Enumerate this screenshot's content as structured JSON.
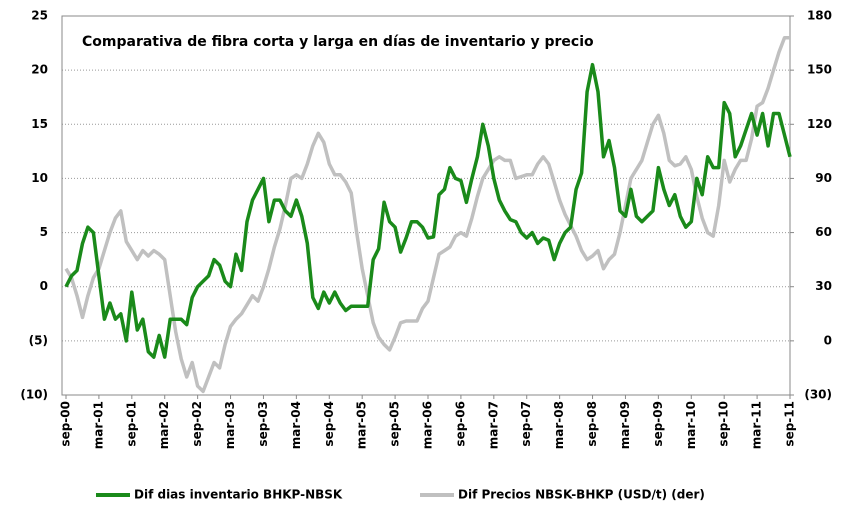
{
  "chart_data": {
    "type": "line",
    "title": "Comparativa de fibra corta y larga en días de inventario y precio",
    "categories": [
      "sep-00",
      null,
      null,
      null,
      null,
      null,
      "mar-01",
      null,
      null,
      null,
      null,
      null,
      "sep-01",
      null,
      null,
      null,
      null,
      null,
      "mar-02",
      null,
      null,
      null,
      null,
      null,
      "sep-02",
      null,
      null,
      null,
      null,
      null,
      "mar-03",
      null,
      null,
      null,
      null,
      null,
      "sep-03",
      null,
      null,
      null,
      null,
      null,
      "mar-04",
      null,
      null,
      null,
      null,
      null,
      "sep-04",
      null,
      null,
      null,
      null,
      null,
      "mar-05",
      null,
      null,
      null,
      null,
      null,
      "sep-05",
      null,
      null,
      null,
      null,
      null,
      "mar-06",
      null,
      null,
      null,
      null,
      null,
      "sep-06",
      null,
      null,
      null,
      null,
      null,
      "mar-07",
      null,
      null,
      null,
      null,
      null,
      "sep-07",
      null,
      null,
      null,
      null,
      null,
      "mar-08",
      null,
      null,
      null,
      null,
      null,
      "sep-08",
      null,
      null,
      null,
      null,
      null,
      "mar-09",
      null,
      null,
      null,
      null,
      null,
      "sep-09",
      null,
      null,
      null,
      null,
      null,
      "mar-10",
      null,
      null,
      null,
      null,
      null,
      "sep-10",
      null,
      null,
      null,
      null,
      null,
      "mar-11",
      null,
      null,
      null,
      null,
      null,
      "sep-11"
    ],
    "series": [
      {
        "name": "Dif dias inventario BHKP-NBSK",
        "color": "#1a8a1a",
        "axis": "y",
        "values": [
          0,
          1,
          1.5,
          4,
          5.5,
          5,
          1,
          -3,
          -1.5,
          -3,
          -2.5,
          -5,
          -0.5,
          -4,
          -3,
          -6,
          -6.5,
          -4.5,
          -6.5,
          -3,
          -3,
          -3,
          -3.5,
          -1,
          0,
          0.5,
          1,
          2.5,
          2,
          0.5,
          0,
          3,
          1.5,
          6,
          8,
          9,
          10,
          6,
          8,
          8,
          7,
          6.5,
          8,
          6.5,
          4,
          -1,
          -2,
          -0.5,
          -1.5,
          -0.5,
          -1.5,
          -2.2,
          -1.8,
          -1.8,
          -1.8,
          -1.8,
          2.5,
          3.5,
          7.8,
          6,
          5.5,
          3.2,
          4.5,
          6,
          6,
          5.5,
          4.5,
          4.6,
          8.5,
          9,
          11,
          10,
          9.8,
          7.8,
          10,
          12,
          15,
          13,
          10,
          8,
          7,
          6.2,
          6,
          5,
          4.5,
          5,
          4,
          4.5,
          4.3,
          2.5,
          4,
          5,
          5.5,
          9,
          10.5,
          18,
          20.5,
          18,
          12,
          13.5,
          11,
          7,
          6.5,
          9,
          6.5,
          6,
          6.5,
          7,
          11,
          9,
          7.5,
          8.5,
          6.5,
          5.5,
          6,
          10,
          8.5,
          12,
          11,
          11,
          17,
          16,
          12,
          13,
          14.5,
          16,
          14,
          16,
          13,
          16,
          16,
          14,
          12
        ]
      },
      {
        "name": "Dif Precios NBSK-BHKP (USD/t) (der)",
        "color": "#c0c0c0",
        "axis": "y2",
        "values": [
          40,
          35,
          25,
          13,
          25,
          35,
          40,
          50,
          60,
          68,
          72,
          55,
          50,
          45,
          50,
          47,
          50,
          48,
          45,
          25,
          5,
          -10,
          -20,
          -12,
          -25,
          -28,
          -20,
          -12,
          -15,
          -2,
          8,
          12,
          15,
          20,
          25,
          22,
          30,
          40,
          52,
          62,
          75,
          90,
          92,
          90,
          98,
          108,
          115,
          110,
          98,
          92,
          92,
          88,
          82,
          60,
          40,
          25,
          10,
          2,
          -2,
          -5,
          2,
          10,
          11,
          11,
          11,
          18,
          22,
          35,
          48,
          50,
          52,
          58,
          60,
          58,
          68,
          80,
          90,
          95,
          100,
          102,
          100,
          100,
          90,
          91,
          92,
          92,
          98,
          102,
          98,
          88,
          78,
          70,
          64,
          58,
          50,
          45,
          47,
          50,
          40,
          45,
          48,
          60,
          75,
          90,
          95,
          100,
          110,
          120,
          125,
          115,
          100,
          97,
          98,
          102,
          95,
          80,
          68,
          60,
          58,
          75,
          100,
          88,
          95,
          100,
          100,
          112,
          130,
          132,
          140,
          150,
          160,
          168,
          168
        ]
      }
    ],
    "ylim": [
      -10,
      25
    ],
    "yticks": [
      {
        "value": -10,
        "label": "(10)"
      },
      {
        "value": -5,
        "label": "(5)"
      },
      0,
      5,
      10,
      15,
      20,
      25
    ],
    "y2lim": [
      -30,
      180
    ],
    "y2ticks": [
      {
        "value": -30,
        "label": "(30)"
      },
      0,
      30,
      60,
      90,
      120,
      150,
      180
    ],
    "grid": true,
    "legend": "bottom"
  }
}
